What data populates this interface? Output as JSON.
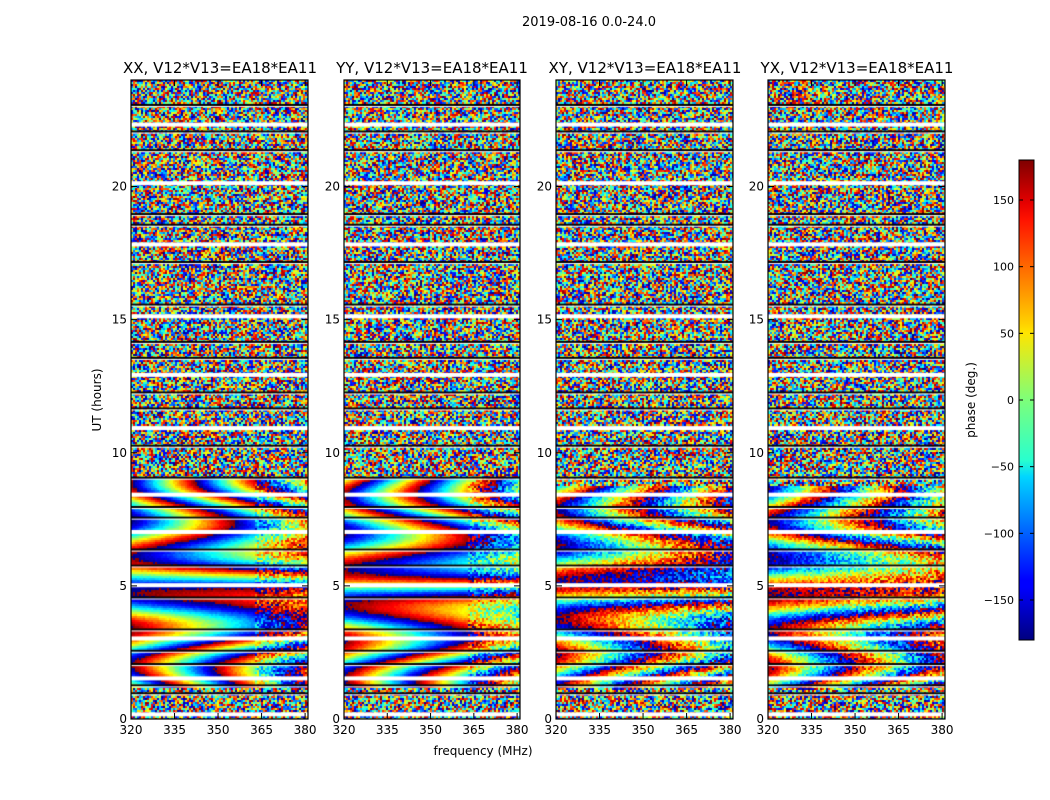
{
  "figure": {
    "suptitle": "2019-08-16 0.0-24.0"
  },
  "chart_data": {
    "type": "heatmap",
    "xlabel": "frequency (MHz)",
    "ylabel": "UT (hours)",
    "xlim": [
      320,
      381
    ],
    "ylim": [
      0,
      24
    ],
    "x_ticks": [
      "320",
      "335",
      "350",
      "365",
      "380"
    ],
    "y_ticks": [
      "0",
      "5",
      "10",
      "15",
      "20"
    ],
    "panels": [
      {
        "title": "XX, V12*V13=EA18*EA11"
      },
      {
        "title": "YY, V12*V13=EA18*EA11"
      },
      {
        "title": "XY, V12*V13=EA18*EA11"
      },
      {
        "title": "YX, V12*V13=EA18*EA11"
      }
    ],
    "colorbar": {
      "label": "phase (deg.)",
      "range": [
        -180,
        180
      ],
      "ticks": [
        "150",
        "100",
        "50",
        "0",
        "−50",
        "−100",
        "−150"
      ],
      "tick_values": [
        150,
        100,
        50,
        0,
        -50,
        -100,
        -150
      ],
      "colormap": "jet"
    },
    "grid": false,
    "flagged_rows_hours": [
      0.25,
      1.0,
      1.3,
      1.6,
      2.1,
      2.6,
      3.1,
      3.4,
      4.6,
      5.1,
      5.8,
      6.4,
      7.1,
      7.6,
      8.0,
      8.5,
      9.1,
      10.3,
      11.0,
      11.7,
      12.3,
      13.0,
      13.6,
      14.2,
      15.2,
      15.6,
      17.2,
      17.9,
      18.6,
      19.0,
      20.2,
      21.4,
      22.1,
      22.4,
      23.1
    ],
    "notes": "Phase vs frequency and time; coherent fringe bands at UT 1-9 h in XX/YY, noise elsewhere"
  }
}
